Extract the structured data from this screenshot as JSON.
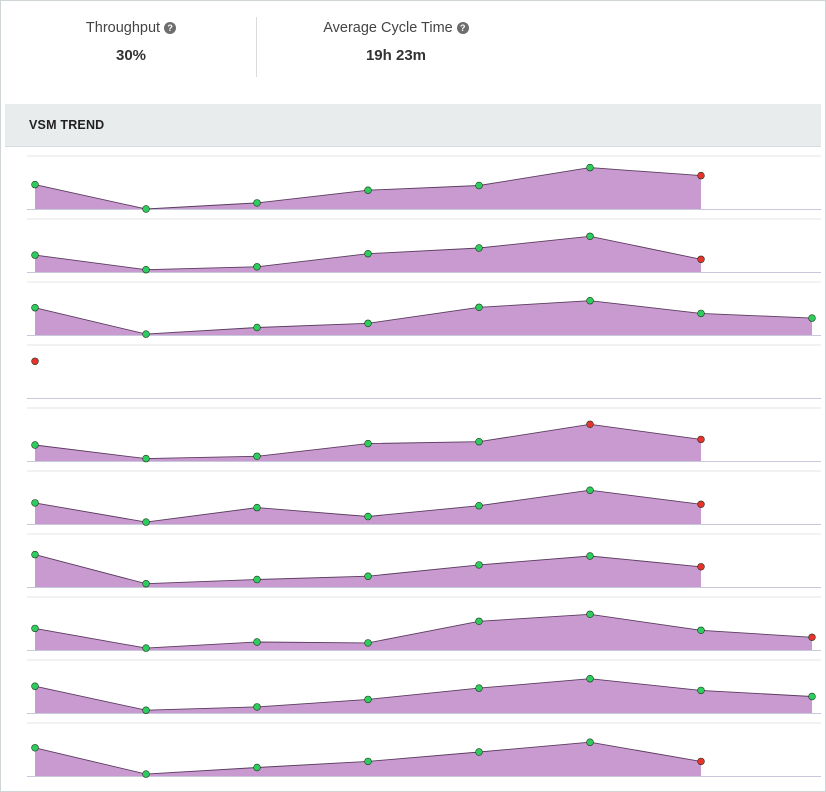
{
  "metrics": {
    "throughput": {
      "label": "Throughput",
      "value": "30%"
    },
    "cycle_time": {
      "label": "Average Cycle Time",
      "value": "19h 23m"
    },
    "help_icon": "question-circle-icon"
  },
  "panel": {
    "title": "VSM TREND"
  },
  "colors": {
    "area_fill": "#c99ad0",
    "area_stroke": "#5b3d5f",
    "point_ok": "#2ecc5f",
    "point_bad": "#e8322d",
    "axis_line": "#c8c8dc",
    "row_divider": "#e3e6e8"
  },
  "chart_data": {
    "type": "area",
    "x": [
      1,
      2,
      3,
      4,
      5,
      6,
      7,
      8
    ],
    "ylim": [
      0,
      1
    ],
    "series": [
      {
        "values": [
          0.52,
          0.0,
          0.13,
          0.4,
          0.5,
          0.88,
          0.71,
          null
        ],
        "status": [
          "ok",
          "ok",
          "ok",
          "ok",
          "ok",
          "ok",
          "bad",
          null
        ]
      },
      {
        "values": [
          0.36,
          0.05,
          0.11,
          0.39,
          0.51,
          0.76,
          0.27,
          null
        ],
        "status": [
          "ok",
          "ok",
          "ok",
          "ok",
          "ok",
          "ok",
          "bad",
          null
        ]
      },
      {
        "values": [
          0.58,
          0.02,
          0.16,
          0.25,
          0.59,
          0.73,
          0.46,
          0.36
        ],
        "status": [
          "ok",
          "ok",
          "ok",
          "ok",
          "ok",
          "ok",
          "ok",
          "ok"
        ]
      },
      {
        "values": [
          0.78,
          null,
          null,
          null,
          null,
          null,
          null,
          null
        ],
        "status": [
          "bad",
          null,
          null,
          null,
          null,
          null,
          null,
          null
        ]
      },
      {
        "values": [
          0.34,
          0.05,
          0.1,
          0.37,
          0.41,
          0.78,
          0.46,
          null
        ],
        "status": [
          "ok",
          "ok",
          "ok",
          "ok",
          "ok",
          "bad",
          "bad",
          null
        ]
      },
      {
        "values": [
          0.45,
          0.04,
          0.35,
          0.16,
          0.39,
          0.72,
          0.42,
          null
        ],
        "status": [
          "ok",
          "ok",
          "ok",
          "ok",
          "ok",
          "ok",
          "bad",
          null
        ]
      },
      {
        "values": [
          0.69,
          0.07,
          0.16,
          0.23,
          0.47,
          0.66,
          0.43,
          null
        ],
        "status": [
          "ok",
          "ok",
          "ok",
          "ok",
          "ok",
          "ok",
          "bad",
          null
        ]
      },
      {
        "values": [
          0.46,
          0.04,
          0.17,
          0.15,
          0.61,
          0.76,
          0.42,
          0.27
        ],
        "status": [
          "ok",
          "ok",
          "ok",
          "ok",
          "ok",
          "ok",
          "ok",
          "bad"
        ]
      },
      {
        "values": [
          0.57,
          0.06,
          0.13,
          0.29,
          0.53,
          0.73,
          0.48,
          0.35
        ],
        "status": [
          "ok",
          "ok",
          "ok",
          "ok",
          "ok",
          "ok",
          "ok",
          "ok"
        ]
      },
      {
        "values": [
          0.6,
          0.04,
          0.18,
          0.31,
          0.51,
          0.72,
          0.31,
          null
        ],
        "status": [
          "ok",
          "ok",
          "ok",
          "ok",
          "ok",
          "ok",
          "bad",
          null
        ]
      }
    ]
  }
}
